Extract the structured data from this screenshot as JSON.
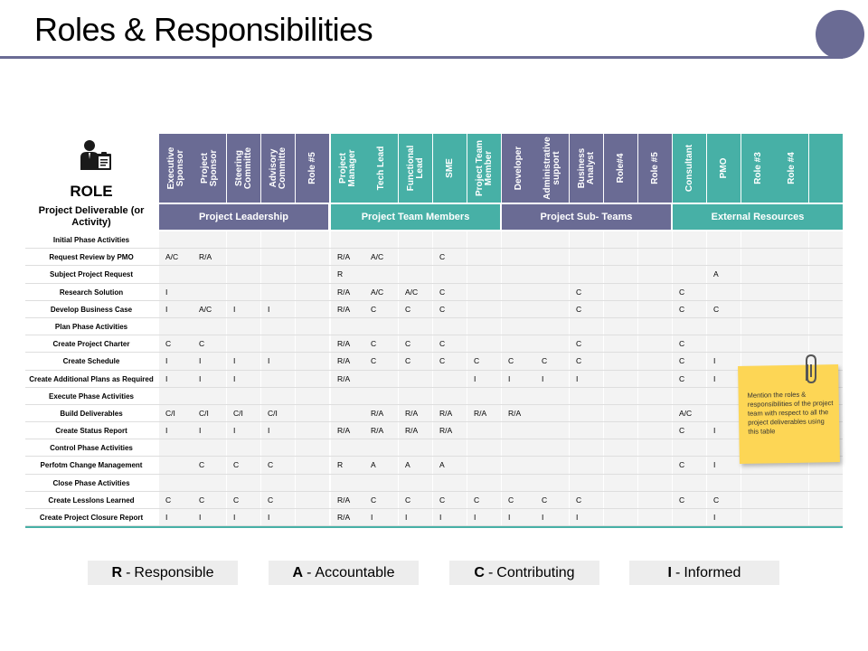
{
  "title": "Roles & Responsibilities",
  "role_label": "ROLE",
  "deliverable_header": "Project Deliverable (or Activity)",
  "columns": [
    {
      "label": "Executive Sponsor",
      "group": 0
    },
    {
      "label": "Project Sponsor",
      "group": 0
    },
    {
      "label": "Steering Committe",
      "group": 0
    },
    {
      "label": "Advisory Committe",
      "group": 0
    },
    {
      "label": "Role #5",
      "group": 0
    },
    {
      "label": "Project Manager",
      "group": 1
    },
    {
      "label": "Tech Lead",
      "group": 1
    },
    {
      "label": "Functional Lead",
      "group": 1
    },
    {
      "label": "SME",
      "group": 1
    },
    {
      "label": "Project Team Member",
      "group": 1
    },
    {
      "label": "Developer",
      "group": 2
    },
    {
      "label": "Administrative support",
      "group": 2
    },
    {
      "label": "Business Analyst",
      "group": 2
    },
    {
      "label": "Role#4",
      "group": 2
    },
    {
      "label": "Role #5",
      "group": 2
    },
    {
      "label": "Consultant",
      "group": 3
    },
    {
      "label": "PMO",
      "group": 3
    },
    {
      "label": "Role #3",
      "group": 3
    },
    {
      "label": "Role #4",
      "group": 3
    },
    {
      "label": "",
      "group": 3
    }
  ],
  "groups": [
    {
      "label": "Project Leadership",
      "color": "#6a6b94"
    },
    {
      "label": "Project Team Members",
      "color": "#47b0a6"
    },
    {
      "label": "Project Sub- Teams",
      "color": "#6a6b94"
    },
    {
      "label": "External Resources",
      "color": "#47b0a6"
    }
  ],
  "rows": [
    {
      "label": "Initial Phase Activities",
      "cells": [
        "",
        "",
        "",
        "",
        "",
        "",
        "",
        "",
        "",
        "",
        "",
        "",
        "",
        "",
        "",
        "",
        "",
        "",
        "",
        ""
      ]
    },
    {
      "label": "Request Review by PMO",
      "cells": [
        "A/C",
        "R/A",
        "",
        "",
        "",
        "R/A",
        "A/C",
        "",
        "C",
        "",
        "",
        "",
        "",
        "",
        "",
        "",
        "",
        "",
        "",
        ""
      ]
    },
    {
      "label": "Subject Project Request",
      "cells": [
        "",
        "",
        "",
        "",
        "",
        "R",
        "",
        "",
        "",
        "",
        "",
        "",
        "",
        "",
        "",
        "",
        "A",
        "",
        "",
        ""
      ]
    },
    {
      "label": "Research Solution",
      "cells": [
        "I",
        "",
        "",
        "",
        "",
        "R/A",
        "A/C",
        "A/C",
        "C",
        "",
        "",
        "",
        "C",
        "",
        "",
        "C",
        "",
        "",
        "",
        ""
      ]
    },
    {
      "label": "Develop Business Case",
      "cells": [
        "I",
        "A/C",
        "I",
        "I",
        "",
        "R/A",
        "C",
        "C",
        "C",
        "",
        "",
        "",
        "C",
        "",
        "",
        "C",
        "C",
        "",
        "",
        ""
      ]
    },
    {
      "label": "Plan Phase Activities",
      "cells": [
        "",
        "",
        "",
        "",
        "",
        "",
        "",
        "",
        "",
        "",
        "",
        "",
        "",
        "",
        "",
        "",
        "",
        "",
        "",
        ""
      ]
    },
    {
      "label": "Create Project Charter",
      "cells": [
        "C",
        "C",
        "",
        "",
        "",
        "R/A",
        "C",
        "C",
        "C",
        "",
        "",
        "",
        "C",
        "",
        "",
        "C",
        "",
        "",
        "",
        ""
      ]
    },
    {
      "label": "Create Schedule",
      "cells": [
        "I",
        "I",
        "I",
        "I",
        "",
        "R/A",
        "C",
        "C",
        "C",
        "C",
        "C",
        "C",
        "C",
        "",
        "",
        "C",
        "I",
        "",
        "",
        ""
      ]
    },
    {
      "label": "Create Additional Plans as Required",
      "cells": [
        "I",
        "I",
        "I",
        "",
        "",
        "R/A",
        "",
        "",
        "",
        "I",
        "I",
        "I",
        "I",
        "",
        "",
        "C",
        "I",
        "",
        "",
        ""
      ]
    },
    {
      "label": "Execute Phase Activities",
      "cells": [
        "",
        "",
        "",
        "",
        "",
        "",
        "",
        "",
        "",
        "",
        "",
        "",
        "",
        "",
        "",
        "",
        "",
        "",
        "",
        ""
      ]
    },
    {
      "label": "Build Deliverables",
      "cells": [
        "C/I",
        "C/I",
        "C/I",
        "C/I",
        "",
        "",
        "R/A",
        "R/A",
        "R/A",
        "R/A",
        "R/A",
        "",
        "",
        "",
        "",
        "A/C",
        "",
        "",
        "",
        ""
      ]
    },
    {
      "label": "Create Status Report",
      "cells": [
        "I",
        "I",
        "I",
        "I",
        "",
        "R/A",
        "R/A",
        "R/A",
        "R/A",
        "",
        "",
        "",
        "",
        "",
        "",
        "C",
        "I",
        "",
        "",
        ""
      ]
    },
    {
      "label": "Control Phase Activities",
      "cells": [
        "",
        "",
        "",
        "",
        "",
        "",
        "",
        "",
        "",
        "",
        "",
        "",
        "",
        "",
        "",
        "",
        "",
        "",
        "",
        ""
      ]
    },
    {
      "label": "Perfotm Change Management",
      "cells": [
        "",
        "C",
        "C",
        "C",
        "",
        "R",
        "A",
        "A",
        "A",
        "",
        "",
        "",
        "",
        "",
        "",
        "C",
        "I",
        "",
        "",
        ""
      ]
    },
    {
      "label": "Close Phase Activities",
      "cells": [
        "",
        "",
        "",
        "",
        "",
        "",
        "",
        "",
        "",
        "",
        "",
        "",
        "",
        "",
        "",
        "",
        "",
        "",
        "",
        ""
      ]
    },
    {
      "label": "Create Lesslons Learned",
      "cells": [
        "C",
        "C",
        "C",
        "C",
        "",
        "R/A",
        "C",
        "C",
        "C",
        "C",
        "C",
        "C",
        "C",
        "",
        "",
        "C",
        "C",
        "",
        "",
        ""
      ]
    },
    {
      "label": "Create Project Closure Report",
      "cells": [
        "I",
        "I",
        "I",
        "I",
        "",
        "R/A",
        "I",
        "I",
        "I",
        "I",
        "I",
        "I",
        "I",
        "",
        "",
        "",
        "I",
        "",
        "",
        ""
      ]
    }
  ],
  "legend": [
    {
      "key": "R",
      "text": "Responsible"
    },
    {
      "key": "A",
      "text": "Accountable"
    },
    {
      "key": "C",
      "text": "Contributing"
    },
    {
      "key": "I",
      "text": "Informed"
    }
  ],
  "note": "Mention the roles & responsibilities of the project team with respect to all the project deliverables using this table",
  "icons": {
    "role": "person-clipboard-icon",
    "note": "paperclip-icon"
  },
  "colors": {
    "purple": "#6a6b94",
    "teal": "#47b0a6",
    "note": "#fdd655"
  }
}
